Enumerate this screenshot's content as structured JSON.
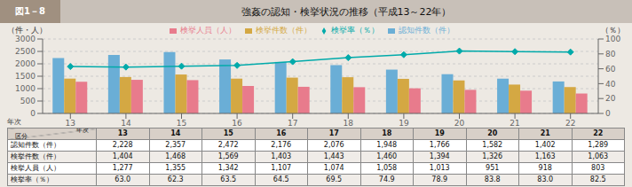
{
  "chart_data": {
    "type": "bar",
    "title": "強姦の認知・検挙状況の推移（平成13～22年）",
    "annotations": [
      "図1－8",
      "年次",
      "区分"
    ],
    "ylabel": "（件・人）",
    "y2label": "（％）",
    "categories": [
      "13",
      "14",
      "15",
      "16",
      "17",
      "18",
      "19",
      "20",
      "21",
      "22"
    ],
    "series": [
      {
        "name": "認知件数（件）",
        "color": "#6aaed6",
        "values": [
          2228,
          2357,
          2472,
          2176,
          2076,
          1948,
          1766,
          1582,
          1402,
          1289
        ]
      },
      {
        "name": "検挙件数（件）",
        "color": "#d4a843",
        "values": [
          1404,
          1468,
          1569,
          1403,
          1443,
          1460,
          1394,
          1326,
          1163,
          1063
        ]
      },
      {
        "name": "検挙人員（人）",
        "color": "#e87b8c",
        "values": [
          1277,
          1355,
          1342,
          1107,
          1074,
          1058,
          1013,
          951,
          918,
          803
        ]
      },
      {
        "name": "検挙率（％）",
        "color": "#00aaaa",
        "type": "line",
        "axis": "y2",
        "marker": "diamond",
        "values": [
          63.0,
          62.3,
          63.5,
          64.5,
          69.5,
          74.9,
          78.9,
          83.8,
          83.0,
          82.5
        ],
        "value_labels": [
          "63.0",
          "62.3",
          "63.5",
          "64.5",
          "69.5",
          "74.9",
          "78.9",
          "83.8",
          "83.0",
          "82.5"
        ]
      }
    ],
    "ylim": [
      0,
      3000
    ],
    "yticks": [
      0,
      500,
      1000,
      1500,
      2000,
      2500,
      3000
    ],
    "y2lim": [
      0,
      100
    ],
    "y2ticks": [
      0,
      20,
      40,
      60,
      80,
      100
    ],
    "grid": true,
    "legend": "top"
  }
}
